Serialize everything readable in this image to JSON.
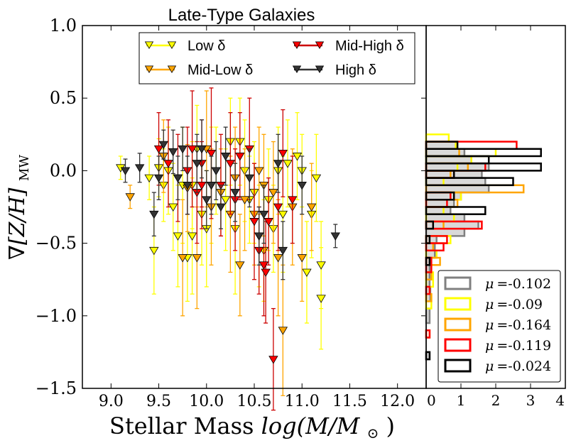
{
  "chart_data": [
    {
      "type": "scatter",
      "title": "Late-Type Galaxies",
      "xlabel": "Stellar Mass",
      "xlabel_math": "log(M/M",
      "xlabel_sub": "⊙",
      "xlabel_close": ")",
      "ylabel_main": "∇[Z/H]",
      "ylabel_sub": "MW",
      "xlim": [
        8.7,
        12.3
      ],
      "ylim": [
        -1.5,
        1.0
      ],
      "xticks": [
        "9.0",
        "9.5",
        "10.0",
        "10.5",
        "11.0",
        "11.5",
        "12.0"
      ],
      "xtick_values": [
        9.0,
        9.5,
        10.0,
        10.5,
        11.0,
        11.5,
        12.0
      ],
      "yticks": [
        "1.0",
        "0.5",
        "0.0",
        "−0.5",
        "−1.0",
        "−1.5"
      ],
      "ytick_values": [
        1.0,
        0.5,
        0.0,
        -0.5,
        -1.0,
        -1.5
      ],
      "grid": false,
      "legend_placement": "top",
      "legend_columns": 2,
      "series": [
        {
          "name": "Low δ",
          "color": "#ffff00",
          "error_color": "#ffff00",
          "points": [
            [
              9.1,
              0.02,
              0.08
            ],
            [
              9.4,
              -0.05,
              0.15
            ],
            [
              9.45,
              -0.55,
              0.3
            ],
            [
              9.5,
              0.02,
              0.2
            ],
            [
              9.55,
              -0.1,
              0.25
            ],
            [
              9.6,
              0.0,
              0.3
            ],
            [
              9.65,
              -0.25,
              0.3
            ],
            [
              9.7,
              -0.45,
              0.35
            ],
            [
              9.75,
              -0.1,
              0.4
            ],
            [
              9.8,
              -0.6,
              0.3
            ],
            [
              9.85,
              -0.45,
              0.4
            ],
            [
              9.85,
              -0.1,
              0.3
            ],
            [
              9.9,
              0.15,
              0.3
            ],
            [
              9.95,
              -0.3,
              0.35
            ],
            [
              10.0,
              -0.4,
              0.4
            ],
            [
              10.05,
              -0.1,
              0.4
            ],
            [
              10.1,
              0.0,
              0.3
            ],
            [
              10.2,
              -0.2,
              0.35
            ],
            [
              10.25,
              0.2,
              0.3
            ],
            [
              10.3,
              -0.4,
              0.45
            ],
            [
              10.35,
              0.2,
              0.3
            ],
            [
              10.4,
              0.0,
              0.35
            ],
            [
              10.45,
              -0.2,
              0.3
            ],
            [
              10.5,
              -0.15,
              0.35
            ],
            [
              10.55,
              -0.45,
              0.35
            ],
            [
              10.6,
              -0.55,
              0.35
            ],
            [
              10.65,
              -0.2,
              0.35
            ],
            [
              10.7,
              -0.4,
              0.3
            ],
            [
              10.75,
              0.0,
              0.3
            ],
            [
              10.8,
              -0.3,
              0.4
            ],
            [
              10.85,
              0.05,
              0.3
            ],
            [
              10.95,
              0.1,
              0.3
            ],
            [
              11.0,
              0.0,
              0.25
            ],
            [
              11.05,
              -0.7,
              0.35
            ],
            [
              11.1,
              -0.3,
              0.3
            ],
            [
              11.15,
              -0.05,
              0.3
            ],
            [
              11.2,
              -0.88,
              0.35
            ],
            [
              11.2,
              -0.65,
              0.3
            ]
          ]
        },
        {
          "name": "Mid-Low δ",
          "color": "#ffa500",
          "error_color": "#ffa500",
          "points": [
            [
              9.2,
              -0.18,
              0.08
            ],
            [
              9.55,
              0.1,
              0.25
            ],
            [
              9.75,
              -0.6,
              0.4
            ],
            [
              9.8,
              -0.12,
              0.3
            ],
            [
              9.9,
              -0.6,
              0.35
            ],
            [
              10.0,
              0.15,
              0.4
            ],
            [
              10.05,
              -0.25,
              0.4
            ],
            [
              10.15,
              -0.15,
              0.3
            ],
            [
              10.25,
              -0.3,
              0.4
            ],
            [
              10.3,
              -0.05,
              0.35
            ],
            [
              10.4,
              -0.2,
              0.35
            ],
            [
              10.5,
              -0.3,
              0.35
            ],
            [
              10.55,
              0.0,
              0.3
            ],
            [
              10.6,
              -0.1,
              0.35
            ],
            [
              10.7,
              -0.15,
              0.35
            ],
            [
              10.75,
              -0.6,
              0.4
            ],
            [
              10.8,
              -1.1,
              0.45
            ],
            [
              10.9,
              -0.25,
              0.4
            ],
            [
              11.0,
              -0.6,
              0.3
            ],
            [
              11.1,
              -0.25,
              0.3
            ],
            [
              10.35,
              -0.65,
              0.35
            ]
          ]
        },
        {
          "name": "Mid-High δ",
          "color": "#ff0000",
          "error_color": "#cc0000",
          "points": [
            [
              9.5,
              0.15,
              0.25
            ],
            [
              9.6,
              0.05,
              0.3
            ],
            [
              9.7,
              -0.05,
              0.3
            ],
            [
              9.8,
              0.0,
              0.3
            ],
            [
              9.85,
              0.15,
              0.4
            ],
            [
              9.9,
              -0.15,
              0.35
            ],
            [
              9.95,
              0.05,
              0.3
            ],
            [
              10.05,
              0.12,
              0.45
            ],
            [
              10.15,
              -0.1,
              0.35
            ],
            [
              10.25,
              0.05,
              0.35
            ],
            [
              10.3,
              -0.2,
              0.35
            ],
            [
              10.35,
              0.1,
              0.3
            ],
            [
              10.45,
              0.15,
              0.35
            ],
            [
              10.5,
              -0.35,
              0.4
            ],
            [
              10.55,
              -0.55,
              0.3
            ],
            [
              10.6,
              -0.65,
              0.35
            ],
            [
              10.62,
              -0.7,
              0.35
            ],
            [
              10.65,
              -0.35,
              0.3
            ],
            [
              10.7,
              -1.3,
              0.35
            ],
            [
              10.75,
              -0.25,
              0.3
            ],
            [
              10.8,
              0.12,
              0.3
            ],
            [
              10.9,
              -0.2,
              0.3
            ],
            [
              9.95,
              -0.1,
              0.3
            ]
          ]
        },
        {
          "name": "High δ",
          "color": "#333333",
          "error_color": "#333333",
          "points": [
            [
              9.15,
              0.0,
              0.08
            ],
            [
              9.3,
              0.02,
              0.1
            ],
            [
              9.45,
              -0.3,
              0.15
            ],
            [
              9.5,
              -0.05,
              0.15
            ],
            [
              9.55,
              0.18,
              0.1
            ],
            [
              9.65,
              0.13,
              0.15
            ],
            [
              9.7,
              -0.05,
              0.15
            ],
            [
              9.75,
              0.15,
              0.15
            ],
            [
              9.8,
              -0.1,
              0.2
            ],
            [
              9.9,
              0.05,
              0.2
            ],
            [
              9.95,
              0.15,
              0.2
            ],
            [
              10.0,
              -0.2,
              0.2
            ],
            [
              10.05,
              -0.1,
              0.2
            ],
            [
              10.1,
              0.0,
              0.2
            ],
            [
              10.15,
              -0.25,
              0.15
            ],
            [
              10.2,
              0.1,
              0.2
            ],
            [
              10.3,
              -0.15,
              0.2
            ],
            [
              10.45,
              -0.05,
              0.2
            ],
            [
              10.6,
              -0.3,
              0.2
            ],
            [
              10.75,
              0.05,
              0.2
            ],
            [
              10.8,
              -0.55,
              0.2
            ],
            [
              11.0,
              -0.1,
              0.2
            ],
            [
              11.35,
              -0.45,
              0.08
            ],
            [
              10.55,
              -0.45,
              0.2
            ]
          ]
        }
      ]
    },
    {
      "type": "histogram",
      "orientation": "horizontal",
      "xlim": [
        0,
        4
      ],
      "xticks": [
        "0",
        "1",
        "2",
        "3",
        "4"
      ],
      "xtick_values": [
        0,
        1,
        2,
        3,
        4
      ],
      "ylim": [
        -1.5,
        1.0
      ],
      "bin_width": 0.05,
      "legend_placement": "bottom-right",
      "series": [
        {
          "name": "μ =-0.102",
          "legend_mu": "μ",
          "legend_value": "=-0.102",
          "color": "#808080",
          "fill": "#d9d9d9",
          "filled": true,
          "bins": [
            [
              0.15,
              0.2,
              0.85
            ],
            [
              0.1,
              0.15,
              1.1
            ],
            [
              0.05,
              0.1,
              1.3
            ],
            [
              0.0,
              0.05,
              1.8
            ],
            [
              -0.05,
              0.0,
              1.6
            ],
            [
              -0.1,
              -0.05,
              1.7
            ],
            [
              -0.15,
              -0.1,
              1.8
            ],
            [
              -0.2,
              -0.15,
              1.0
            ],
            [
              -0.25,
              -0.2,
              0.8
            ],
            [
              -0.3,
              -0.25,
              0.7
            ],
            [
              -0.35,
              -0.3,
              1.1
            ],
            [
              -0.4,
              -0.35,
              1.5
            ],
            [
              -0.45,
              -0.4,
              1.1
            ],
            [
              -0.5,
              -0.45,
              0.3
            ],
            [
              -0.6,
              -0.5,
              0.25
            ],
            [
              -0.7,
              -0.6,
              0.1
            ],
            [
              -0.8,
              -0.7,
              0.1
            ],
            [
              -0.9,
              -0.8,
              0.12
            ],
            [
              -1.05,
              -0.95,
              0.1
            ],
            [
              -1.3,
              -1.25,
              0.1
            ]
          ]
        },
        {
          "name": "μ =-0.09",
          "legend_mu": "μ",
          "legend_value": "=-0.09",
          "color": "#ffff00",
          "fill": "none",
          "filled": false,
          "bins": [
            [
              0.2,
              0.25,
              0.65
            ],
            [
              0.15,
              0.2,
              0.85
            ],
            [
              0.1,
              0.15,
              2.0
            ],
            [
              0.05,
              0.1,
              1.3
            ],
            [
              0.0,
              0.05,
              0.9
            ],
            [
              -0.1,
              -0.05,
              0.5
            ],
            [
              -0.2,
              -0.15,
              1.0
            ],
            [
              -0.3,
              -0.25,
              0.5
            ],
            [
              -0.35,
              -0.3,
              0.8
            ],
            [
              -0.5,
              -0.45,
              0.7
            ],
            [
              -0.6,
              -0.55,
              0.3
            ],
            [
              -0.8,
              -0.7,
              0.2
            ],
            [
              -0.95,
              -0.85,
              0.15
            ]
          ]
        },
        {
          "name": "μ =-0.164",
          "legend_mu": "μ",
          "legend_value": "=-0.164",
          "color": "#ffa500",
          "fill": "none",
          "filled": false,
          "bins": [
            [
              0.1,
              0.15,
              0.95
            ],
            [
              0.0,
              0.05,
              1.2
            ],
            [
              -0.05,
              0.0,
              0.7
            ],
            [
              -0.15,
              -0.1,
              2.8
            ],
            [
              -0.25,
              -0.2,
              0.9
            ],
            [
              -0.4,
              -0.35,
              0.5
            ],
            [
              -0.55,
              -0.5,
              0.2
            ],
            [
              -0.65,
              -0.6,
              0.4
            ],
            [
              -0.75,
              -0.7,
              0.15
            ],
            [
              -0.9,
              -0.85,
              0.15
            ],
            [
              -1.15,
              -1.1,
              0.1
            ]
          ]
        },
        {
          "name": "μ =-0.119",
          "legend_mu": "μ",
          "legend_value": "=-0.119",
          "color": "#ff0000",
          "fill": "none",
          "filled": false,
          "bins": [
            [
              0.15,
              0.2,
              2.6
            ],
            [
              0.0,
              0.05,
              1.7
            ],
            [
              -0.05,
              0.0,
              0.8
            ],
            [
              -0.2,
              -0.15,
              0.7
            ],
            [
              -0.25,
              -0.2,
              0.6
            ],
            [
              -0.4,
              -0.35,
              1.6
            ],
            [
              -0.5,
              -0.45,
              0.6
            ],
            [
              -0.55,
              -0.5,
              0.5
            ],
            [
              -0.7,
              -0.6,
              0.15
            ],
            [
              -0.85,
              -0.8,
              0.1
            ],
            [
              -1.15,
              -1.1,
              0.1
            ]
          ]
        },
        {
          "name": "μ =-0.024",
          "legend_mu": "μ",
          "legend_value": "=-0.024",
          "color": "#000000",
          "fill": "none",
          "filled": false,
          "bins": [
            [
              0.15,
              0.2,
              0.9
            ],
            [
              0.1,
              0.15,
              3.3
            ],
            [
              0.05,
              0.1,
              1.8
            ],
            [
              0.0,
              0.05,
              3.3
            ],
            [
              -0.05,
              0.0,
              0.8
            ],
            [
              -0.1,
              -0.05,
              2.5
            ],
            [
              -0.2,
              -0.15,
              0.8
            ],
            [
              -0.3,
              -0.25,
              1.7
            ],
            [
              -0.4,
              -0.35,
              0.2
            ],
            [
              -0.5,
              -0.45,
              0.1
            ],
            [
              -0.65,
              -0.6,
              0.1
            ],
            [
              -1.3,
              -1.25,
              0.1
            ]
          ]
        }
      ]
    }
  ]
}
